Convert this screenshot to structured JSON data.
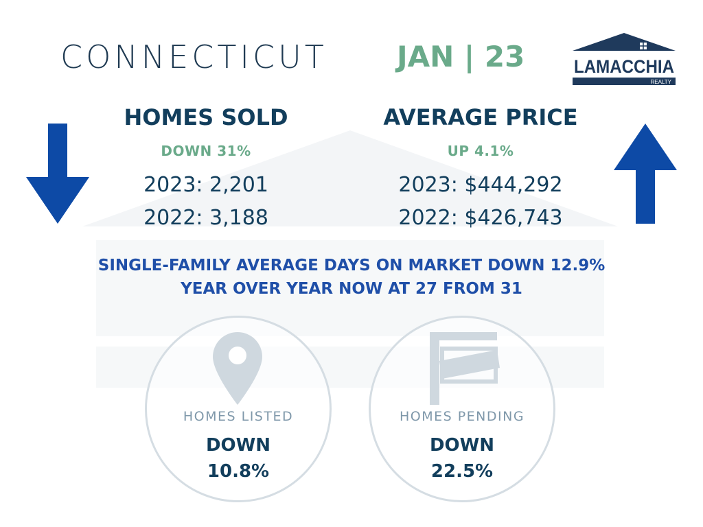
{
  "header": {
    "state": "CONNECTICUT",
    "period": "JAN | 23",
    "logo": {
      "name": "LAMACCHIA",
      "subtitle": "REALTY"
    }
  },
  "homes_sold": {
    "title": "HOMES SOLD",
    "change": "DOWN 31%",
    "current": "2023: 2,201",
    "previous": "2022: 3,188",
    "trend_icon": "arrow-down-icon"
  },
  "average_price": {
    "title": "AVERAGE PRICE",
    "change": "UP 4.1%",
    "current": "2023: $444,292",
    "previous": "2022: $426,743",
    "trend_icon": "arrow-up-icon"
  },
  "days_on_market": {
    "line1": "SINGLE-FAMILY AVERAGE DAYS ON MARKET DOWN 12.9%",
    "line2": "YEAR OVER YEAR NOW AT 27 FROM 31"
  },
  "homes_listed": {
    "label": "HOMES LISTED",
    "direction": "DOWN",
    "value": "10.8%",
    "icon": "map-pin-icon"
  },
  "homes_pending": {
    "label": "HOMES PENDING",
    "direction": "DOWN",
    "value": "22.5%",
    "icon": "for-sale-sign-icon"
  },
  "colors": {
    "navy": "#123e5c",
    "green": "#6aaa8a",
    "blue": "#1f4fa8",
    "arrow": "#0d4aa6",
    "circle_border": "#d5dde3",
    "icon_gray": "#cfd8df"
  }
}
